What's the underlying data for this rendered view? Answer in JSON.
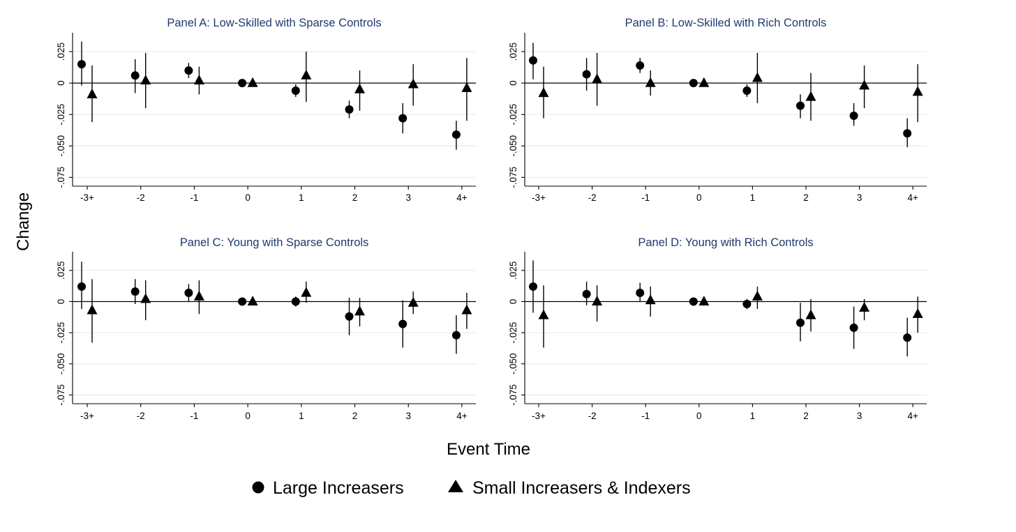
{
  "figure": {
    "ylabel": "Change",
    "xlabel": "Event Time",
    "legend": {
      "placement": "bottom",
      "items": [
        {
          "marker": "circle",
          "label": "Large Increasers"
        },
        {
          "marker": "triangle",
          "label": "Small Increasers & Indexers"
        }
      ]
    }
  },
  "chart_data": [
    {
      "type": "scatter",
      "title": "Panel A: Low-Skilled with Sparse Controls",
      "categories": [
        "-3+",
        "-2",
        "-1",
        "0",
        "1",
        "2",
        "3",
        "4+"
      ],
      "yticks": [
        0.025,
        0,
        -0.025,
        -0.05,
        -0.075
      ],
      "ytick_labels": [
        ".025",
        "0",
        "-.025",
        "-.050",
        "-.075"
      ],
      "ylim": [
        -0.082,
        0.04
      ],
      "grid": true,
      "series": [
        {
          "name": "Large Increasers",
          "marker": "circle",
          "values": [
            0.015,
            0.006,
            0.01,
            0.0,
            -0.006,
            -0.021,
            -0.028,
            -0.041
          ],
          "lower": [
            -0.002,
            -0.008,
            0.004,
            0.0,
            -0.011,
            -0.028,
            -0.04,
            -0.053
          ],
          "upper": [
            0.033,
            0.019,
            0.016,
            0.0,
            -0.001,
            -0.014,
            -0.016,
            -0.03
          ]
        },
        {
          "name": "Small Increasers & Indexers",
          "marker": "triangle",
          "values": [
            -0.009,
            0.002,
            0.002,
            0.0,
            0.006,
            -0.005,
            -0.001,
            -0.004
          ],
          "lower": [
            -0.031,
            -0.02,
            -0.009,
            0.0,
            -0.015,
            -0.022,
            -0.018,
            -0.03
          ],
          "upper": [
            0.014,
            0.024,
            0.013,
            0.0,
            0.025,
            0.01,
            0.015,
            0.02
          ]
        }
      ]
    },
    {
      "type": "scatter",
      "title": "Panel B: Low-Skilled with Rich Controls",
      "categories": [
        "-3+",
        "-2",
        "-1",
        "0",
        "1",
        "2",
        "3",
        "4+"
      ],
      "yticks": [
        0.025,
        0,
        -0.025,
        -0.05,
        -0.075
      ],
      "ytick_labels": [
        ".025",
        "0",
        "-.025",
        "-.050",
        "-.075"
      ],
      "ylim": [
        -0.082,
        0.04
      ],
      "grid": true,
      "series": [
        {
          "name": "Large Increasers",
          "marker": "circle",
          "values": [
            0.018,
            0.007,
            0.014,
            0.0,
            -0.006,
            -0.018,
            -0.026,
            -0.04
          ],
          "lower": [
            0.003,
            -0.006,
            0.008,
            0.0,
            -0.011,
            -0.028,
            -0.034,
            -0.051
          ],
          "upper": [
            0.032,
            0.02,
            0.02,
            0.0,
            -0.001,
            -0.009,
            -0.016,
            -0.028
          ]
        },
        {
          "name": "Small Increasers & Indexers",
          "marker": "triangle",
          "values": [
            -0.008,
            0.003,
            0.0,
            0.0,
            0.004,
            -0.011,
            -0.002,
            -0.007
          ],
          "lower": [
            -0.028,
            -0.018,
            -0.01,
            0.0,
            -0.016,
            -0.03,
            -0.02,
            -0.031
          ],
          "upper": [
            0.013,
            0.024,
            0.01,
            0.0,
            0.024,
            0.008,
            0.014,
            0.015
          ]
        }
      ]
    },
    {
      "type": "scatter",
      "title": "Panel C: Young with Sparse Controls",
      "categories": [
        "-3+",
        "-2",
        "-1",
        "0",
        "1",
        "2",
        "3",
        "4+"
      ],
      "yticks": [
        0.025,
        0,
        -0.025,
        -0.05,
        -0.075
      ],
      "ytick_labels": [
        ".025",
        "0",
        "-.025",
        "-.050",
        "-.075"
      ],
      "ylim": [
        -0.082,
        0.04
      ],
      "grid": true,
      "series": [
        {
          "name": "Large Increasers",
          "marker": "circle",
          "values": [
            0.012,
            0.008,
            0.007,
            0.0,
            0.0,
            -0.012,
            -0.018,
            -0.027
          ],
          "lower": [
            -0.006,
            -0.002,
            0.0,
            0.0,
            -0.004,
            -0.027,
            -0.037,
            -0.042
          ],
          "upper": [
            0.032,
            0.018,
            0.014,
            0.0,
            0.004,
            0.003,
            0.001,
            -0.011
          ]
        },
        {
          "name": "Small Increasers & Indexers",
          "marker": "triangle",
          "values": [
            -0.007,
            0.002,
            0.004,
            0.0,
            0.007,
            -0.008,
            -0.001,
            -0.007
          ],
          "lower": [
            -0.033,
            -0.015,
            -0.01,
            0.0,
            -0.001,
            -0.02,
            -0.01,
            -0.022
          ],
          "upper": [
            0.018,
            0.017,
            0.017,
            0.0,
            0.016,
            0.003,
            0.008,
            0.007
          ]
        }
      ]
    },
    {
      "type": "scatter",
      "title": "Panel D: Young with Rich Controls",
      "categories": [
        "-3+",
        "-2",
        "-1",
        "0",
        "1",
        "2",
        "3",
        "4+"
      ],
      "yticks": [
        0.025,
        0,
        -0.025,
        -0.05,
        -0.075
      ],
      "ytick_labels": [
        ".025",
        "0",
        "-.025",
        "-.050",
        "-.075"
      ],
      "ylim": [
        -0.082,
        0.04
      ],
      "grid": true,
      "series": [
        {
          "name": "Large Increasers",
          "marker": "circle",
          "values": [
            0.012,
            0.006,
            0.007,
            0.0,
            -0.002,
            -0.017,
            -0.021,
            -0.029
          ],
          "lower": [
            -0.009,
            -0.003,
            0.0,
            0.0,
            -0.006,
            -0.032,
            -0.038,
            -0.044
          ],
          "upper": [
            0.033,
            0.016,
            0.015,
            0.0,
            0.002,
            -0.001,
            -0.004,
            -0.013
          ]
        },
        {
          "name": "Small Increasers & Indexers",
          "marker": "triangle",
          "values": [
            -0.011,
            0.0,
            0.001,
            0.0,
            0.004,
            -0.011,
            -0.005,
            -0.01
          ],
          "lower": [
            -0.037,
            -0.016,
            -0.012,
            0.0,
            -0.006,
            -0.024,
            -0.015,
            -0.025
          ],
          "upper": [
            0.013,
            0.013,
            0.012,
            0.0,
            0.012,
            0.002,
            0.002,
            0.004
          ]
        }
      ]
    }
  ]
}
